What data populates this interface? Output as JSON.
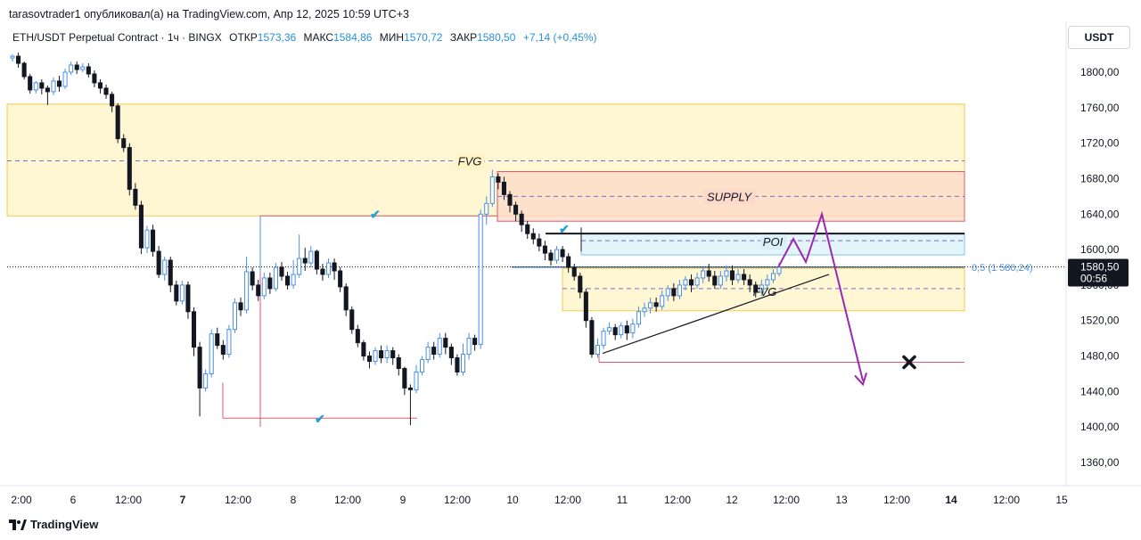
{
  "header": {
    "author": "tarasovtrader1",
    "published": "опубликовал(а) на TradingView.com, Апр 12, 2025 10:59 UTC+3"
  },
  "legend": {
    "symbol": "ETH/USDT Perpetual Contract · 1ч · BINGX",
    "open_label": "ОТКР",
    "open": "1573,36",
    "high_label": "МАКС",
    "high": "1584,86",
    "low_label": "МИН",
    "low": "1570,72",
    "close_label": "ЗАКР",
    "close": "1580,50",
    "change": "+7,14 (+0,45%)"
  },
  "currency_button": "USDT",
  "footer": {
    "brand": "TradingView"
  },
  "colors": {
    "up": "#4a90e2",
    "down": "#131722",
    "accent": "#2a8fd6",
    "fvg_zone": "#fff3c4",
    "supply_zone": "#fcd9c8",
    "poi_zone": "#d9f0f8",
    "target_path": "#9c27b0"
  },
  "chart_data": {
    "type": "candlestick",
    "ylim": [
      1340,
      1820
    ],
    "y_ticks": [
      "1800,00",
      "1760,00",
      "1720,00",
      "1680,00",
      "1640,00",
      "1600,00",
      "1560,00",
      "1520,00",
      "1480,00",
      "1440,00",
      "1400,00",
      "1360,00"
    ],
    "x_ticks": [
      "2:00",
      "6",
      "12:00",
      "7",
      "12:00",
      "8",
      "12:00",
      "9",
      "12:00",
      "10",
      "12:00",
      "11",
      "12:00",
      "12",
      "12:00",
      "13",
      "12:00",
      "14",
      "12:00",
      "15"
    ],
    "bold_x_ticks": [
      "7",
      "14"
    ],
    "last_price_label": "1580,50",
    "countdown": "00:56",
    "fib_label": "0,5 (1 580,24)",
    "annotations": [
      {
        "text": "FVG",
        "price": 1700
      },
      {
        "text": "SUPPLY",
        "price": 1660
      },
      {
        "text": "POI",
        "price": 1609
      },
      {
        "text": "FVG",
        "price": 1553
      }
    ],
    "zones": [
      {
        "name": "FVG",
        "top": 1764,
        "bottom": 1638,
        "mid": 1700
      },
      {
        "name": "SUPPLY",
        "top": 1688,
        "bottom": 1632,
        "mid": 1660
      },
      {
        "name": "POI",
        "top": 1618,
        "bottom": 1594,
        "mid": 1610
      },
      {
        "name": "FVG lower",
        "top": 1579,
        "bottom": 1531,
        "mid": 1556
      }
    ],
    "levels": [
      {
        "name": "resistance",
        "price": 1638
      },
      {
        "name": "swing low",
        "price": 1410
      },
      {
        "name": "swing low 2",
        "price": 1473
      },
      {
        "name": "poi line",
        "price": 1618
      }
    ],
    "projection": [
      1580,
      1612,
      1586,
      1640,
      1452
    ],
    "candles": [
      [
        1816,
        1818,
        1812,
        1820
      ],
      [
        1818,
        1810,
        1805,
        1822
      ],
      [
        1810,
        1795,
        1792,
        1812
      ],
      [
        1795,
        1780,
        1776,
        1798
      ],
      [
        1780,
        1788,
        1776,
        1790
      ],
      [
        1788,
        1782,
        1775,
        1792
      ],
      [
        1782,
        1778,
        1763,
        1785
      ],
      [
        1778,
        1790,
        1774,
        1794
      ],
      [
        1790,
        1784,
        1778,
        1796
      ],
      [
        1784,
        1800,
        1781,
        1804
      ],
      [
        1800,
        1808,
        1797,
        1812
      ],
      [
        1808,
        1803,
        1798,
        1812
      ],
      [
        1803,
        1806,
        1800,
        1810
      ],
      [
        1806,
        1798,
        1794,
        1810
      ],
      [
        1798,
        1788,
        1783,
        1802
      ],
      [
        1788,
        1782,
        1776,
        1792
      ],
      [
        1782,
        1775,
        1770,
        1786
      ],
      [
        1775,
        1762,
        1755,
        1778
      ],
      [
        1762,
        1725,
        1720,
        1765
      ],
      [
        1725,
        1715,
        1710,
        1730
      ],
      [
        1715,
        1668,
        1661,
        1720
      ],
      [
        1668,
        1650,
        1645,
        1675
      ],
      [
        1650,
        1602,
        1595,
        1655
      ],
      [
        1602,
        1622,
        1596,
        1627
      ],
      [
        1622,
        1598,
        1592,
        1628
      ],
      [
        1598,
        1572,
        1568,
        1604
      ],
      [
        1572,
        1588,
        1565,
        1592
      ],
      [
        1588,
        1560,
        1552,
        1592
      ],
      [
        1560,
        1542,
        1537,
        1565
      ],
      [
        1542,
        1560,
        1538,
        1565
      ],
      [
        1560,
        1530,
        1522,
        1564
      ],
      [
        1530,
        1490,
        1480,
        1535
      ],
      [
        1490,
        1444,
        1412,
        1496
      ],
      [
        1444,
        1460,
        1440,
        1465
      ],
      [
        1460,
        1505,
        1456,
        1510
      ],
      [
        1505,
        1492,
        1488,
        1512
      ],
      [
        1492,
        1482,
        1476,
        1498
      ],
      [
        1482,
        1510,
        1478,
        1515
      ],
      [
        1510,
        1540,
        1506,
        1545
      ],
      [
        1540,
        1532,
        1525,
        1546
      ],
      [
        1532,
        1575,
        1528,
        1592
      ],
      [
        1575,
        1560,
        1554,
        1580
      ],
      [
        1560,
        1548,
        1542,
        1566
      ],
      [
        1548,
        1568,
        1544,
        1574
      ],
      [
        1568,
        1556,
        1550,
        1574
      ],
      [
        1556,
        1580,
        1553,
        1585
      ],
      [
        1580,
        1570,
        1565,
        1586
      ],
      [
        1570,
        1560,
        1555,
        1575
      ],
      [
        1560,
        1572,
        1556,
        1588
      ],
      [
        1572,
        1590,
        1568,
        1617
      ],
      [
        1590,
        1585,
        1576,
        1602
      ],
      [
        1585,
        1598,
        1580,
        1604
      ],
      [
        1598,
        1578,
        1572,
        1600
      ],
      [
        1578,
        1572,
        1565,
        1584
      ],
      [
        1572,
        1585,
        1568,
        1590
      ],
      [
        1585,
        1576,
        1566,
        1590
      ],
      [
        1576,
        1558,
        1552,
        1580
      ],
      [
        1558,
        1532,
        1525,
        1562
      ],
      [
        1532,
        1510,
        1505,
        1536
      ],
      [
        1510,
        1495,
        1490,
        1515
      ],
      [
        1495,
        1480,
        1475,
        1498
      ],
      [
        1480,
        1474,
        1466,
        1485
      ],
      [
        1474,
        1486,
        1470,
        1490
      ],
      [
        1486,
        1478,
        1472,
        1492
      ],
      [
        1478,
        1486,
        1472,
        1492
      ],
      [
        1486,
        1478,
        1470,
        1490
      ],
      [
        1478,
        1466,
        1458,
        1482
      ],
      [
        1466,
        1444,
        1436,
        1468
      ],
      [
        1444,
        1442,
        1402,
        1448
      ],
      [
        1442,
        1462,
        1438,
        1470
      ],
      [
        1462,
        1476,
        1458,
        1480
      ],
      [
        1476,
        1490,
        1472,
        1496
      ],
      [
        1490,
        1482,
        1476,
        1496
      ],
      [
        1482,
        1500,
        1478,
        1506
      ],
      [
        1500,
        1490,
        1482,
        1506
      ],
      [
        1490,
        1478,
        1470,
        1494
      ],
      [
        1478,
        1462,
        1458,
        1482
      ],
      [
        1462,
        1482,
        1458,
        1494
      ],
      [
        1482,
        1500,
        1476,
        1506
      ],
      [
        1500,
        1493,
        1486,
        1504
      ],
      [
        1493,
        1640,
        1488,
        1645
      ],
      [
        1640,
        1652,
        1628,
        1660
      ],
      [
        1652,
        1682,
        1648,
        1690
      ],
      [
        1682,
        1676,
        1668,
        1686
      ],
      [
        1676,
        1662,
        1656,
        1682
      ],
      [
        1662,
        1650,
        1642,
        1666
      ],
      [
        1650,
        1640,
        1632,
        1654
      ],
      [
        1640,
        1628,
        1620,
        1644
      ],
      [
        1628,
        1618,
        1612,
        1632
      ],
      [
        1618,
        1612,
        1606,
        1624
      ],
      [
        1612,
        1604,
        1598,
        1618
      ],
      [
        1604,
        1596,
        1588,
        1610
      ],
      [
        1596,
        1588,
        1582,
        1600
      ],
      [
        1588,
        1600,
        1584,
        1604
      ],
      [
        1600,
        1592,
        1586,
        1604
      ],
      [
        1592,
        1580,
        1574,
        1596
      ],
      [
        1580,
        1570,
        1565,
        1584
      ],
      [
        1570,
        1552,
        1545,
        1574
      ],
      [
        1552,
        1520,
        1512,
        1556
      ],
      [
        1520,
        1482,
        1478,
        1524
      ],
      [
        1482,
        1492,
        1478,
        1500
      ],
      [
        1492,
        1508,
        1488,
        1512
      ],
      [
        1508,
        1512,
        1504,
        1518
      ],
      [
        1512,
        1504,
        1498,
        1516
      ],
      [
        1504,
        1514,
        1500,
        1518
      ],
      [
        1514,
        1506,
        1498,
        1520
      ],
      [
        1506,
        1516,
        1500,
        1522
      ],
      [
        1516,
        1530,
        1512,
        1536
      ],
      [
        1530,
        1534,
        1524,
        1540
      ],
      [
        1534,
        1540,
        1528,
        1546
      ],
      [
        1540,
        1536,
        1530,
        1546
      ],
      [
        1536,
        1548,
        1532,
        1554
      ],
      [
        1548,
        1556,
        1542,
        1560
      ],
      [
        1556,
        1548,
        1542,
        1562
      ],
      [
        1548,
        1560,
        1544,
        1566
      ],
      [
        1560,
        1566,
        1554,
        1570
      ],
      [
        1566,
        1560,
        1552,
        1572
      ],
      [
        1560,
        1568,
        1556,
        1574
      ],
      [
        1568,
        1576,
        1562,
        1580
      ],
      [
        1576,
        1570,
        1564,
        1584
      ],
      [
        1570,
        1560,
        1556,
        1576
      ],
      [
        1560,
        1570,
        1556,
        1576
      ],
      [
        1570,
        1576,
        1564,
        1582
      ],
      [
        1576,
        1566,
        1560,
        1582
      ],
      [
        1566,
        1572,
        1562,
        1578
      ],
      [
        1572,
        1566,
        1560,
        1578
      ],
      [
        1566,
        1560,
        1552,
        1572
      ],
      [
        1560,
        1552,
        1546,
        1564
      ],
      [
        1552,
        1560,
        1548,
        1566
      ],
      [
        1560,
        1566,
        1556,
        1572
      ],
      [
        1566,
        1573,
        1562,
        1578
      ],
      [
        1573,
        1580,
        1570,
        1585
      ]
    ]
  }
}
